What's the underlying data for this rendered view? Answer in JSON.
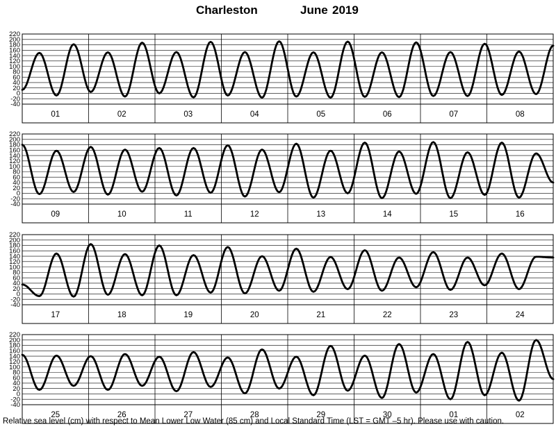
{
  "chart_data": {
    "type": "line",
    "title": {
      "station": "Charleston",
      "month": "June",
      "year": "2019"
    },
    "y_ticks": [
      220,
      200,
      180,
      160,
      140,
      120,
      100,
      80,
      60,
      40,
      20,
      0,
      -20,
      -40
    ],
    "ylim": [
      -40,
      220
    ],
    "grid": true,
    "panels": [
      {
        "day_labels": [
          "01",
          "02",
          "03",
          "04",
          "05",
          "06",
          "07",
          "08"
        ],
        "series": [
          {
            "values": [
              13,
              150,
              -8,
              182,
              5,
              152,
              -12,
              188,
              0,
              153,
              -15,
              191,
              -8,
              153,
              -16,
              193,
              -12,
              152,
              -16,
              192,
              -13,
              152,
              -14,
              189,
              -10,
              153,
              -10,
              184,
              -6,
              155,
              -3,
              177
            ]
          }
        ]
      },
      {
        "day_labels": [
          "09",
          "10",
          "11",
          "12",
          "13",
          "14",
          "15",
          "16"
        ],
        "series": [
          {
            "values": [
              180,
              -3,
              158,
              5,
              172,
              -5,
              162,
              6,
              168,
              -8,
              168,
              2,
              178,
              -12,
              162,
              4,
              184,
              -16,
              158,
              0,
              188,
              -18,
              155,
              -2,
              190,
              -18,
              152,
              -6,
              188,
              -16,
              148,
              40
            ]
          }
        ]
      },
      {
        "day_labels": [
          "17",
          "18",
          "19",
          "20",
          "21",
          "22",
          "23",
          "24"
        ],
        "series": [
          {
            "values": [
              35,
              -8,
              150,
              -10,
              185,
              -3,
              148,
              -5,
              180,
              -5,
              144,
              5,
              174,
              2,
              140,
              12,
              168,
              8,
              137,
              18,
              162,
              12,
              135,
              25,
              155,
              15,
              135,
              32,
              150,
              18,
              138,
              135
            ]
          }
        ]
      },
      {
        "day_labels": [
          "25",
          "26",
          "27",
          "28",
          "29",
          "30",
          "01",
          "02"
        ],
        "series": [
          {
            "values": [
              145,
              15,
              142,
              30,
              140,
              15,
              148,
              30,
              138,
              10,
              155,
              26,
              135,
              2,
              165,
              20,
              138,
              -5,
              178,
              12,
              142,
              -15,
              185,
              5,
              148,
              -20,
              193,
              -5,
              153,
              -25,
              200,
              55
            ]
          }
        ]
      }
    ]
  },
  "footnote": "Relative sea level (cm) with respect to Mean Lower Low Water (85 cm) and Local Standard Time (LST = GMT –5 hr). Please use with caution."
}
